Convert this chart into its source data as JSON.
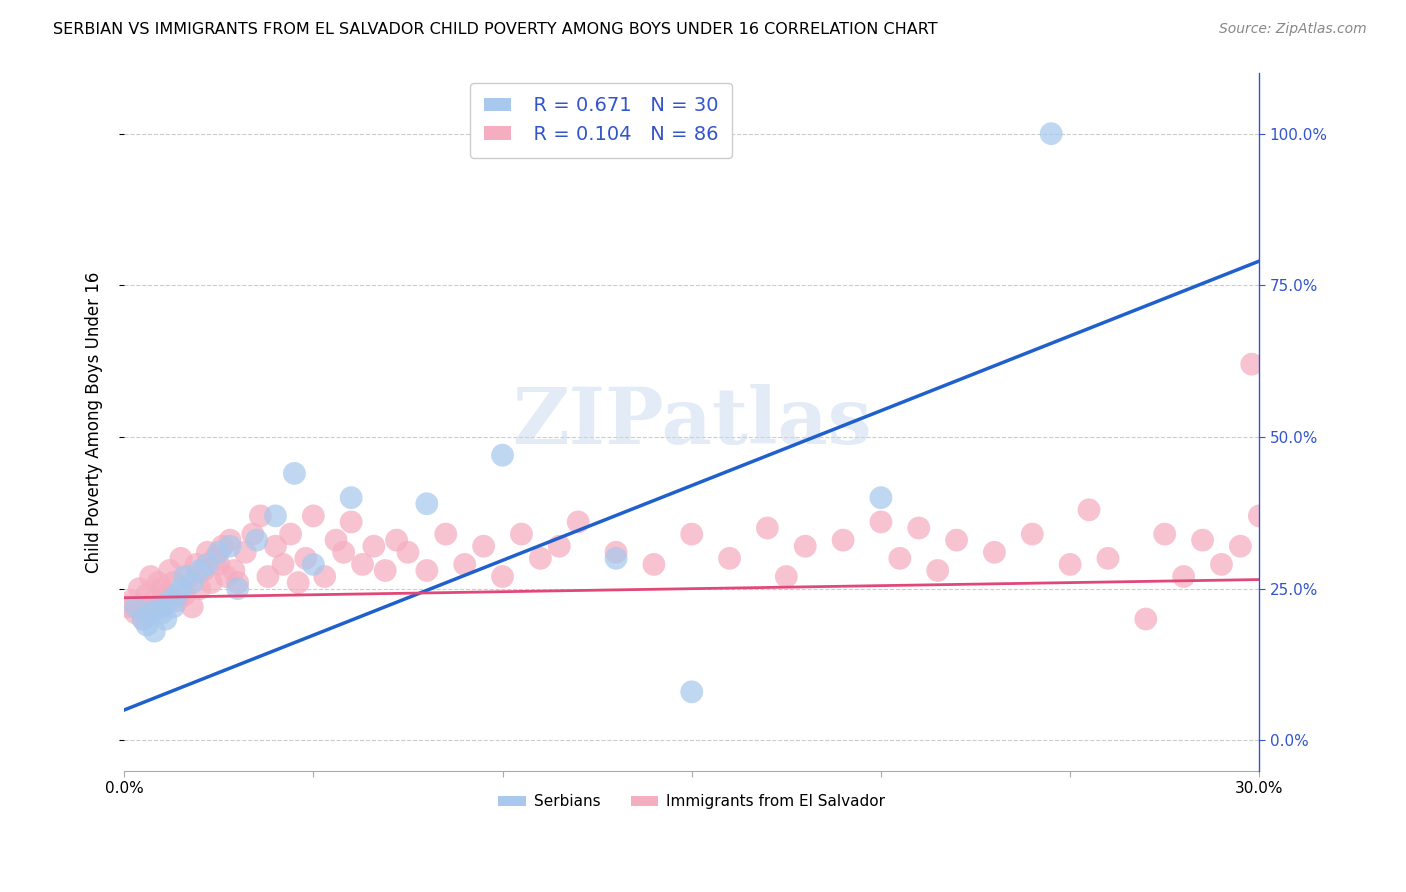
{
  "title": "SERBIAN VS IMMIGRANTS FROM EL SALVADOR CHILD POVERTY AMONG BOYS UNDER 16 CORRELATION CHART",
  "source": "Source: ZipAtlas.com",
  "ylabel": "Child Poverty Among Boys Under 16",
  "xlim": [
    0.0,
    0.3
  ],
  "ylim": [
    -0.05,
    1.1
  ],
  "watermark": "ZIPatlas",
  "legend_serbian_r": "R = 0.671",
  "legend_serbian_n": "N = 30",
  "legend_salvador_r": "R = 0.104",
  "legend_salvador_n": "N = 86",
  "legend_label1": "Serbians",
  "legend_label2": "Immigrants from El Salvador",
  "serbian_color": "#a8c8ed",
  "salvador_color": "#f5adc0",
  "serbian_line_color": "#2060cc",
  "salvador_line_color": "#e04878",
  "ytick_color": "#3355cc",
  "grid_color": "#cccccc",
  "serbian_line_y0": 0.05,
  "serbian_line_y1": 0.79,
  "salvador_line_y0": 0.235,
  "salvador_line_y1": 0.265,
  "serbian_x": [
    0.003,
    0.005,
    0.006,
    0.007,
    0.008,
    0.009,
    0.01,
    0.011,
    0.012,
    0.013,
    0.014,
    0.015,
    0.016,
    0.018,
    0.02,
    0.022,
    0.025,
    0.028,
    0.03,
    0.035,
    0.04,
    0.045,
    0.05,
    0.06,
    0.08,
    0.1,
    0.13,
    0.15,
    0.2,
    0.245
  ],
  "serbian_y": [
    0.22,
    0.2,
    0.19,
    0.21,
    0.18,
    0.22,
    0.21,
    0.2,
    0.23,
    0.22,
    0.24,
    0.25,
    0.27,
    0.26,
    0.28,
    0.29,
    0.31,
    0.32,
    0.25,
    0.33,
    0.37,
    0.44,
    0.29,
    0.4,
    0.39,
    0.47,
    0.3,
    0.08,
    0.4,
    1.0
  ],
  "salvador_x": [
    0.001,
    0.002,
    0.003,
    0.004,
    0.005,
    0.006,
    0.007,
    0.007,
    0.008,
    0.009,
    0.01,
    0.01,
    0.011,
    0.012,
    0.013,
    0.014,
    0.015,
    0.016,
    0.017,
    0.018,
    0.019,
    0.02,
    0.021,
    0.022,
    0.023,
    0.024,
    0.025,
    0.026,
    0.027,
    0.028,
    0.029,
    0.03,
    0.032,
    0.034,
    0.036,
    0.038,
    0.04,
    0.042,
    0.044,
    0.046,
    0.048,
    0.05,
    0.053,
    0.056,
    0.058,
    0.06,
    0.063,
    0.066,
    0.069,
    0.072,
    0.075,
    0.08,
    0.085,
    0.09,
    0.095,
    0.1,
    0.105,
    0.11,
    0.115,
    0.12,
    0.13,
    0.14,
    0.15,
    0.16,
    0.17,
    0.175,
    0.18,
    0.19,
    0.2,
    0.205,
    0.21,
    0.215,
    0.22,
    0.23,
    0.24,
    0.25,
    0.255,
    0.26,
    0.27,
    0.275,
    0.28,
    0.285,
    0.29,
    0.295,
    0.298,
    0.3
  ],
  "salvador_y": [
    0.22,
    0.23,
    0.21,
    0.25,
    0.2,
    0.24,
    0.22,
    0.27,
    0.23,
    0.26,
    0.22,
    0.25,
    0.24,
    0.28,
    0.26,
    0.23,
    0.3,
    0.24,
    0.27,
    0.22,
    0.29,
    0.25,
    0.28,
    0.31,
    0.26,
    0.3,
    0.29,
    0.32,
    0.27,
    0.33,
    0.28,
    0.26,
    0.31,
    0.34,
    0.37,
    0.27,
    0.32,
    0.29,
    0.34,
    0.26,
    0.3,
    0.37,
    0.27,
    0.33,
    0.31,
    0.36,
    0.29,
    0.32,
    0.28,
    0.33,
    0.31,
    0.28,
    0.34,
    0.29,
    0.32,
    0.27,
    0.34,
    0.3,
    0.32,
    0.36,
    0.31,
    0.29,
    0.34,
    0.3,
    0.35,
    0.27,
    0.32,
    0.33,
    0.36,
    0.3,
    0.35,
    0.28,
    0.33,
    0.31,
    0.34,
    0.29,
    0.38,
    0.3,
    0.2,
    0.34,
    0.27,
    0.33,
    0.29,
    0.32,
    0.62,
    0.37
  ]
}
